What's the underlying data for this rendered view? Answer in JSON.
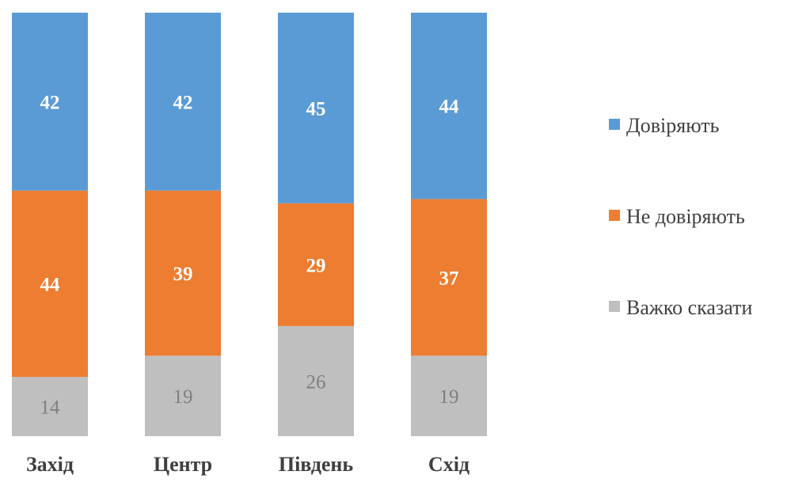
{
  "chart_data": {
    "type": "bar",
    "stacked": true,
    "normalized_100": true,
    "categories": [
      "Захід",
      "Центр",
      "Південь",
      "Схід"
    ],
    "series": [
      {
        "name": "Довіряють",
        "values": [
          42,
          42,
          45,
          44
        ],
        "color": "#5B9BD5",
        "label_color": "#FFFFFF",
        "label_bold": true
      },
      {
        "name": "Не довіряють",
        "values": [
          44,
          39,
          29,
          37
        ],
        "color": "#ED7D31",
        "label_color": "#FFFFFF",
        "label_bold": true
      },
      {
        "name": "Важко сказати",
        "values": [
          14,
          19,
          26,
          19
        ],
        "color": "#BFBFBF",
        "label_color": "#7F7F7F",
        "label_bold": false
      }
    ],
    "stack_order_bottom_to_top": [
      "Важко сказати",
      "Не довіряють",
      "Довіряють"
    ],
    "legend_position": "right",
    "grid": false,
    "title": "",
    "xlabel": "",
    "ylabel": ""
  }
}
